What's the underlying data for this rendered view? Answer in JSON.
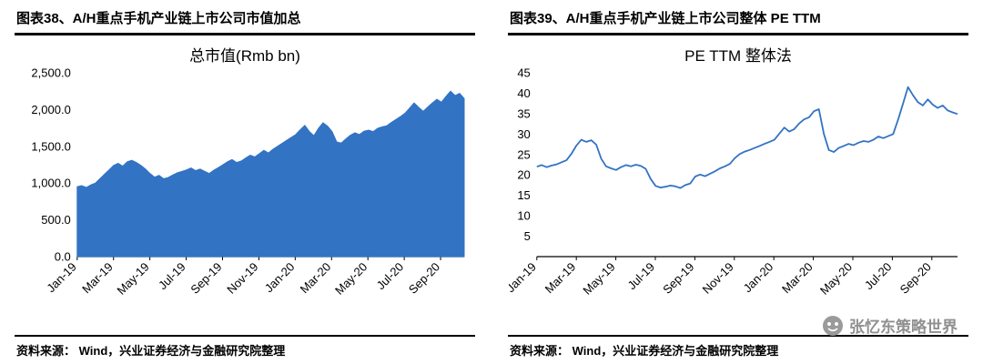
{
  "panels": [
    {
      "header": "图表38、A/H重点手机产业链上市公司市值加总",
      "source": "资料来源： Wind，兴业证券经济与金融研究院整理"
    },
    {
      "header": "图表39、A/H重点手机产业链上市公司整体 PE TTM",
      "source": "资料来源： Wind，兴业证券经济与金融研究院整理"
    }
  ],
  "watermark": {
    "text": "张忆东策略世界"
  },
  "chart_data": [
    {
      "type": "area",
      "title": "总市值(Rmb bn)",
      "series_name": "total-market-cap",
      "color": "#3273C4",
      "ylim": [
        0,
        2500
      ],
      "yticks": [
        {
          "v": 0,
          "label": "0.0"
        },
        {
          "v": 500,
          "label": "500.0"
        },
        {
          "v": 1000,
          "label": "1,000.0"
        },
        {
          "v": 1500,
          "label": "1,500.0"
        },
        {
          "v": 2000,
          "label": "2,000.0"
        },
        {
          "v": 2500,
          "label": "2,500.0"
        }
      ],
      "x_tick_labels": [
        "Jan-19",
        "Mar-19",
        "May-19",
        "Jul-19",
        "Sep-19",
        "Nov-19",
        "Jan-20",
        "Mar-20",
        "May-20",
        "Jul-20",
        "Sep-20"
      ],
      "x_tick_month_step": 2,
      "x_total_months": 21.3,
      "grid": false,
      "legend": "none",
      "values": [
        950,
        965,
        940,
        975,
        1000,
        1060,
        1120,
        1180,
        1240,
        1270,
        1230,
        1290,
        1310,
        1280,
        1240,
        1190,
        1130,
        1080,
        1105,
        1060,
        1075,
        1110,
        1140,
        1160,
        1180,
        1205,
        1170,
        1190,
        1160,
        1130,
        1175,
        1210,
        1250,
        1290,
        1320,
        1280,
        1300,
        1340,
        1380,
        1355,
        1400,
        1445,
        1410,
        1460,
        1500,
        1540,
        1580,
        1620,
        1660,
        1725,
        1785,
        1700,
        1645,
        1745,
        1820,
        1775,
        1700,
        1560,
        1545,
        1600,
        1650,
        1685,
        1660,
        1705,
        1720,
        1700,
        1745,
        1765,
        1780,
        1825,
        1865,
        1905,
        1950,
        2020,
        2090,
        2030,
        1975,
        2035,
        2090,
        2140,
        2100,
        2180,
        2250,
        2190,
        2220,
        2150
      ]
    },
    {
      "type": "line",
      "title": "PE TTM 整体法",
      "series_name": "pe-ttm",
      "color": "#3273C4",
      "ylim": [
        0,
        45
      ],
      "yticks": [
        {
          "v": 5,
          "label": "5"
        },
        {
          "v": 10,
          "label": "10"
        },
        {
          "v": 15,
          "label": "15"
        },
        {
          "v": 20,
          "label": "20"
        },
        {
          "v": 25,
          "label": "25"
        },
        {
          "v": 30,
          "label": "30"
        },
        {
          "v": 35,
          "label": "35"
        },
        {
          "v": 40,
          "label": "40"
        },
        {
          "v": 45,
          "label": "45"
        }
      ],
      "x_tick_labels": [
        "Jan-19",
        "Mar-19",
        "May-19",
        "Jul-19",
        "Sep-19",
        "Nov-19",
        "Jan-20",
        "Mar-20",
        "May-20",
        "Jul-20",
        "Sep-20"
      ],
      "x_tick_month_step": 2,
      "x_total_months": 21.3,
      "grid": false,
      "legend": "none",
      "values": [
        22.0,
        22.4,
        21.9,
        22.3,
        22.6,
        23.1,
        23.6,
        25.2,
        27.2,
        28.6,
        28.1,
        28.5,
        27.4,
        24.0,
        22.1,
        21.6,
        21.2,
        21.9,
        22.4,
        22.1,
        22.5,
        22.2,
        21.5,
        19.0,
        17.3,
        16.9,
        17.1,
        17.4,
        17.2,
        16.8,
        17.5,
        17.9,
        19.6,
        20.1,
        19.7,
        20.3,
        20.9,
        21.6,
        22.1,
        22.7,
        24.1,
        25.1,
        25.7,
        26.1,
        26.6,
        27.1,
        27.6,
        28.1,
        28.6,
        30.1,
        31.6,
        30.6,
        31.2,
        32.6,
        33.6,
        34.1,
        35.6,
        36.1,
        30.0,
        26.1,
        25.6,
        26.6,
        27.1,
        27.6,
        27.3,
        27.9,
        28.3,
        28.1,
        28.6,
        29.4,
        29.0,
        29.5,
        30.0,
        33.5,
        37.5,
        41.5,
        39.5,
        37.8,
        37.0,
        38.5,
        37.2,
        36.4,
        37.0,
        35.8,
        35.3,
        34.9
      ]
    }
  ]
}
